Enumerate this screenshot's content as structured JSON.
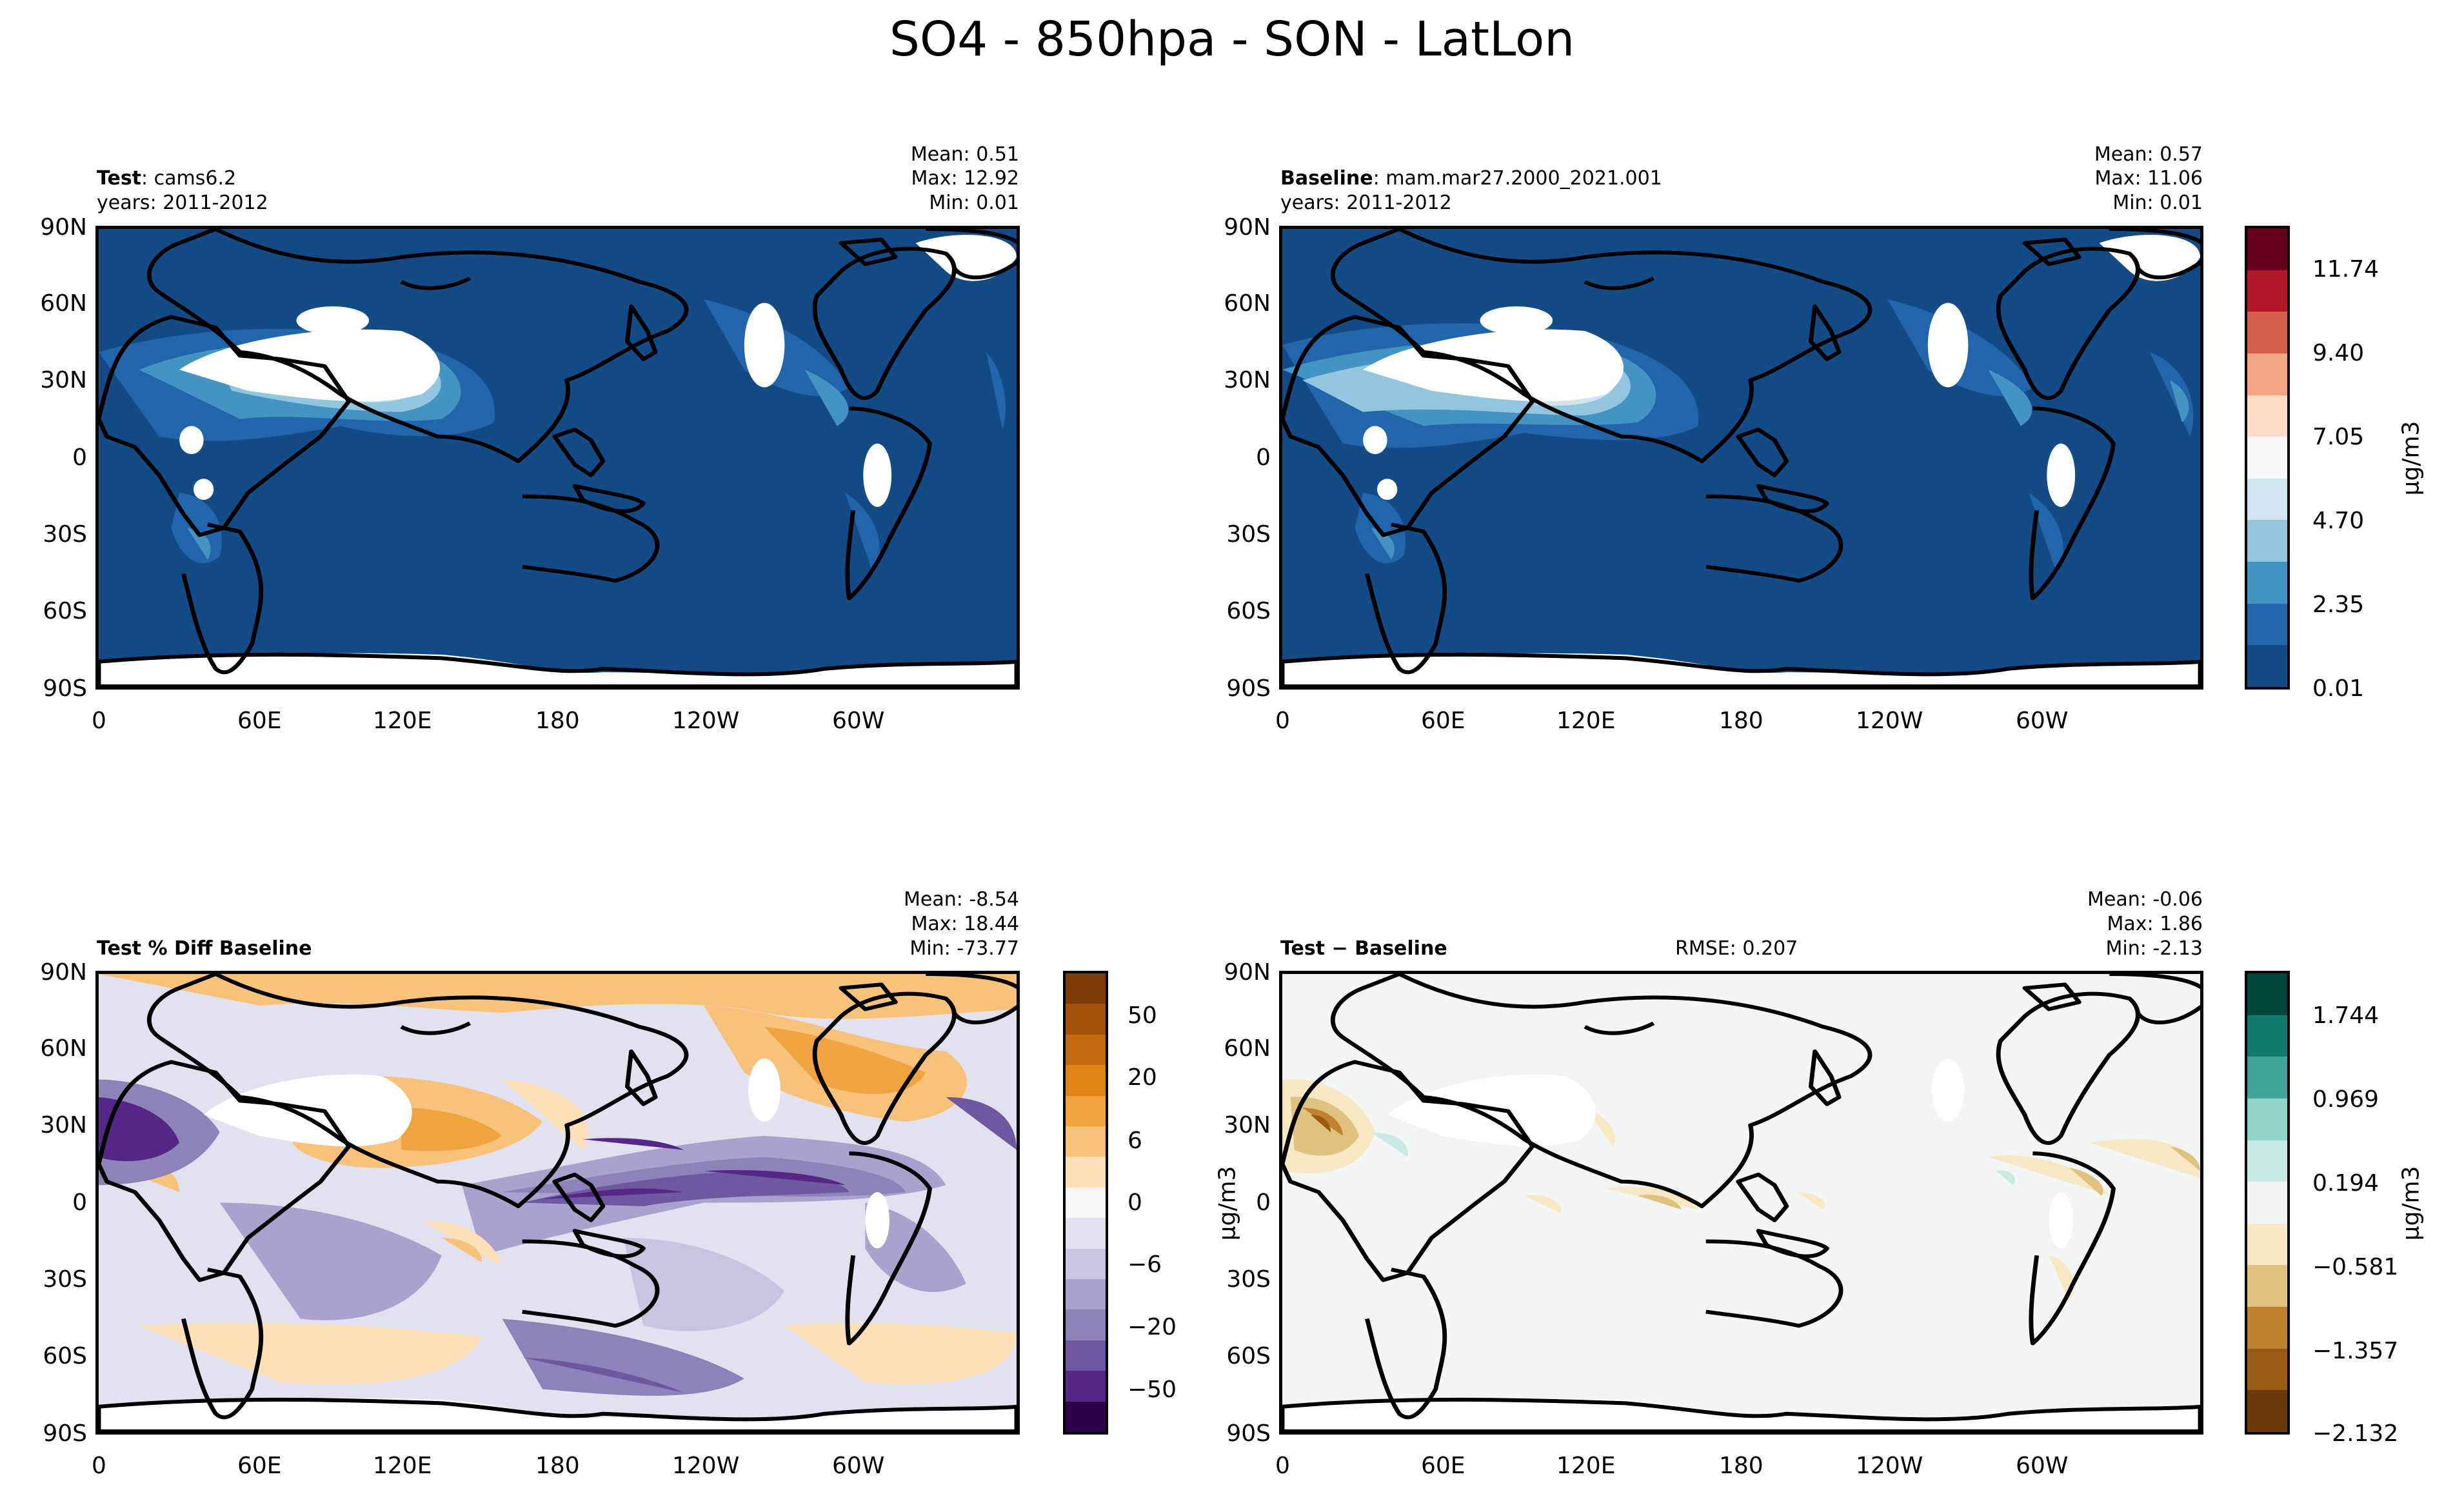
{
  "figure": {
    "title": "SO4 - 850hpa - SON - LatLon"
  },
  "axes": {
    "lat_ticks": [
      "90N",
      "60N",
      "30N",
      "0",
      "30S",
      "60S",
      "90S"
    ],
    "lon_ticks": [
      "0",
      "60E",
      "120E",
      "180",
      "120W",
      "60W"
    ]
  },
  "panels": {
    "test": {
      "label_bold": "Test",
      "label_rest": ": cams6.2",
      "years": "years: 2011-2012",
      "stats": {
        "mean": "Mean:  0.51",
        "max": "Max: 12.92",
        "min": "Min:  0.01"
      }
    },
    "baseline": {
      "label_bold": "Baseline",
      "label_rest": ": mam.mar27.2000_2021.001",
      "years": "years: 2011-2012",
      "stats": {
        "mean": "Mean:  0.57",
        "max": "Max: 11.06",
        "min": "Min:  0.01"
      }
    },
    "pctdiff": {
      "label_bold": "Test % Diff Baseline",
      "stats": {
        "mean": "Mean: -8.54",
        "max": "Max: 18.44",
        "min": "Min: -73.77"
      }
    },
    "diff": {
      "label_bold": "Test",
      "label_rest": "Baseline",
      "operator": "−",
      "rmse": "RMSE: 0.207",
      "stats": {
        "mean": "Mean: -0.06",
        "max": "Max:  1.86",
        "min": "Min: -2.13"
      }
    }
  },
  "colorbars": {
    "main": {
      "unit": "μg/m3",
      "ticks": [
        "11.74",
        "9.40",
        "7.05",
        "4.70",
        "2.35",
        "0.01"
      ],
      "colors": [
        "#67001f",
        "#b2182b",
        "#d6604d",
        "#f4a582",
        "#fddbc7",
        "#f7f7f7",
        "#d1e5f0",
        "#92c5de",
        "#4393c3",
        "#2166ac",
        "#134b87"
      ]
    },
    "pct": {
      "unit": "μg/m3",
      "ticks": [
        "50",
        "20",
        "6",
        "0",
        "−6",
        "−20",
        "−50"
      ],
      "colors": [
        "#7f3b08",
        "#a4510b",
        "#c46b12",
        "#e08214",
        "#f1a340",
        "#f8c27a",
        "#fde0b6",
        "#f7f7f7",
        "#e2e1ef",
        "#c8c5e1",
        "#a9a2cd",
        "#8e83b9",
        "#6f58a2",
        "#542788",
        "#2d004b"
      ]
    },
    "diff": {
      "unit": "μg/m3",
      "ticks": [
        "1.744",
        "0.969",
        "0.194",
        "−0.581",
        "−1.357",
        "−2.132"
      ],
      "colors": [
        "#01463a",
        "#0f7a6c",
        "#3fa497",
        "#8fd3c6",
        "#c7eae4",
        "#f2f5f3",
        "#f6e8c3",
        "#dfc27d",
        "#bf812d",
        "#9a5a14",
        "#6b3a08"
      ]
    }
  }
}
